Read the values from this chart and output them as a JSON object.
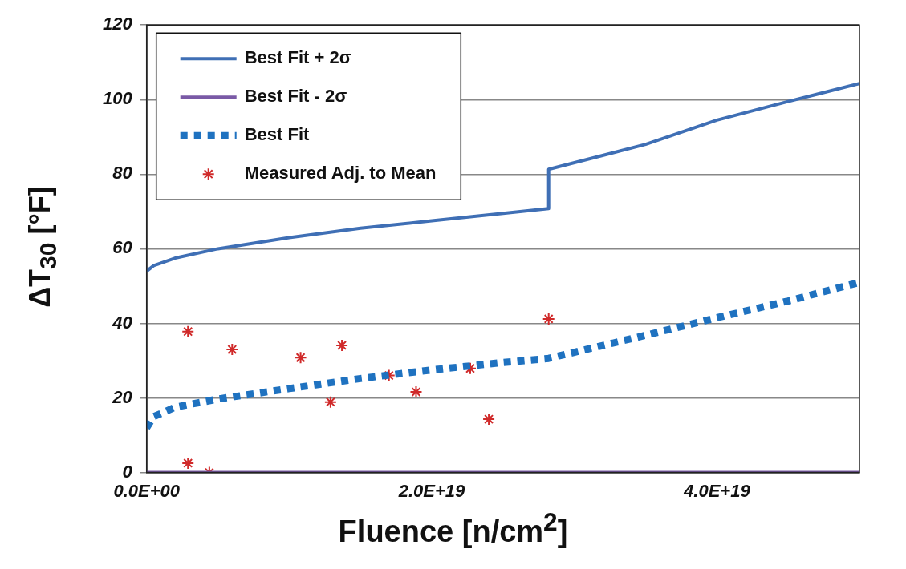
{
  "chart_data": {
    "type": "line",
    "xlabel": "Fluence  [n/cm$^{2}$]",
    "ylabel": "ΔT$_{30}$  [°F]",
    "xlim": [
      0,
      5e+19
    ],
    "ylim": [
      0,
      120
    ],
    "xticks": [
      {
        "value": 0,
        "label": "0.0E+00"
      },
      {
        "value": 2e+19,
        "label": "2.0E+19"
      },
      {
        "value": 4e+19,
        "label": "4.0E+19"
      }
    ],
    "yticks": [
      0,
      20,
      40,
      60,
      80,
      100,
      120
    ],
    "grid": "y",
    "legend": "top left",
    "series": [
      {
        "name": "Best Fit + 2σ",
        "type": "line",
        "color": "#3f6fb5",
        "marker": "none",
        "line_style": "solid",
        "x": [
          0,
          5e+17,
          2e+18,
          5e+18,
          1e+19,
          1.5e+19,
          2e+19,
          2.5e+19,
          2.82e+19,
          2.82e+19,
          3.5e+19,
          4e+19,
          4.5e+19,
          5e+19
        ],
        "values": [
          54,
          55.5,
          57.5,
          60,
          63,
          65.5,
          67.5,
          69.5,
          70.8,
          81.3,
          88,
          94.5,
          99.5,
          104.3
        ]
      },
      {
        "name": "Best Fit - 2σ",
        "type": "line",
        "color": "#7a5aa6",
        "marker": "none",
        "line_style": "solid",
        "x": [
          0,
          5e+19
        ],
        "values": [
          0,
          0
        ]
      },
      {
        "name": "Best Fit",
        "type": "line",
        "color": "#1f72c0",
        "marker": "none",
        "line_style": "dotted",
        "x": [
          0,
          5e+17,
          2e+18,
          5e+18,
          1e+19,
          1.5e+19,
          2e+19,
          2.5e+19,
          2.82e+19,
          3.5e+19,
          4e+19,
          4.5e+19,
          5e+19
        ],
        "values": [
          12,
          15,
          17.5,
          19.7,
          22.5,
          25.2,
          27.5,
          29.5,
          30.6,
          36.8,
          41.5,
          46,
          51
        ]
      },
      {
        "name": "Measured Adj. to Mean",
        "type": "scatter",
        "color": "#d02a2a",
        "marker": "cross",
        "x": [
          2.9e+18,
          2.9e+18,
          4.4e+18,
          6e+18,
          1.08e+19,
          1.29e+19,
          1.37e+19,
          1.7e+19,
          1.89e+19,
          2.27e+19,
          2.4e+19,
          2.82e+19
        ],
        "values": [
          37.8,
          2.5,
          0,
          33,
          30.8,
          18.9,
          34.1,
          26,
          21.6,
          27.9,
          14.3,
          41.2
        ]
      }
    ]
  }
}
